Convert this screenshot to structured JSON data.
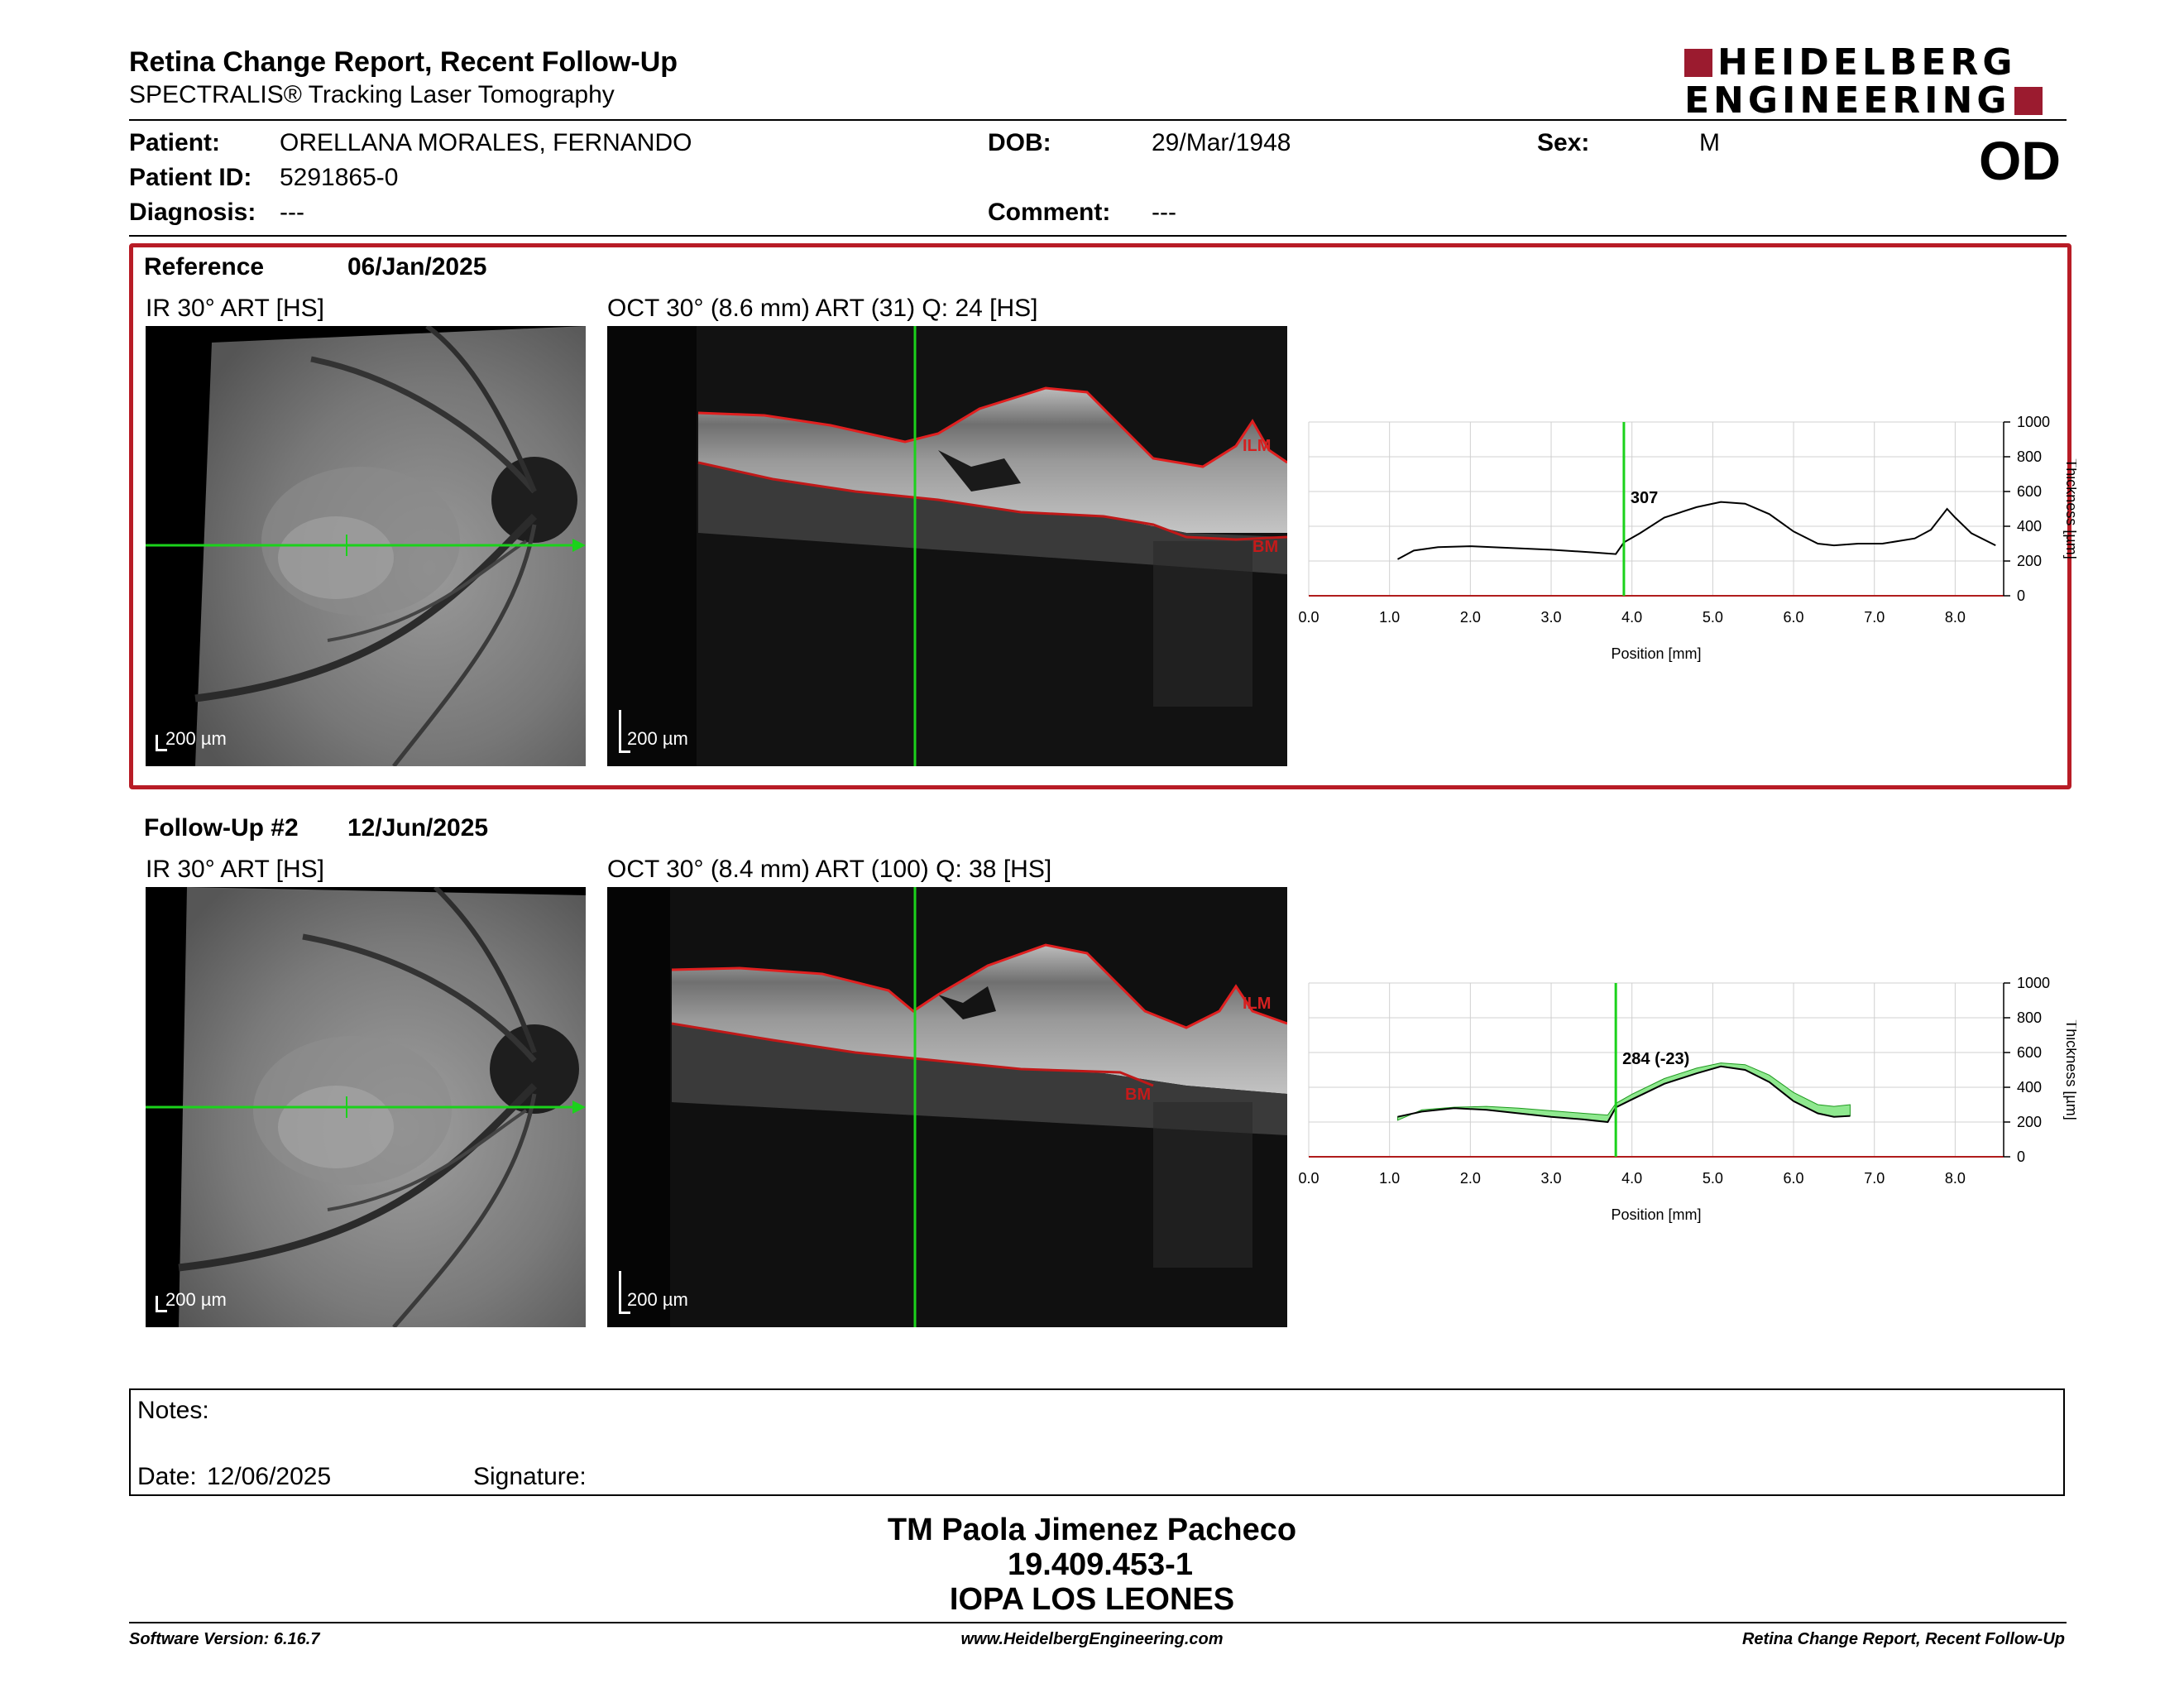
{
  "header": {
    "title": "Retina Change Report, Recent Follow-Up",
    "subtitle": "SPECTRALIS® Tracking Laser Tomography",
    "logo_line1": "HEIDELBERG",
    "logo_line2": "ENGINEERING",
    "eye": "OD"
  },
  "patient": {
    "patient_label": "Patient:",
    "patient_name": "ORELLANA MORALES, FERNANDO",
    "id_label": "Patient ID:",
    "id": "5291865-0",
    "diagnosis_label": "Diagnosis:",
    "diagnosis": "---",
    "dob_label": "DOB:",
    "dob": "29/Mar/1948",
    "comment_label": "Comment:",
    "comment": "---",
    "sex_label": "Sex:",
    "sex": "M"
  },
  "reference": {
    "label": "Reference",
    "date": "06/Jan/2025",
    "ir_caption": "IR 30° ART [HS]",
    "oct_caption": "OCT 30° (8.6 mm) ART (31) Q: 24 [HS]",
    "ir_scale": "200 µm",
    "oct_scale": "200 µm",
    "ilm": "ILM",
    "bm": "BM",
    "marker_value": "307"
  },
  "followup": {
    "label": "Follow-Up #2",
    "date": "12/Jun/2025",
    "ir_caption": "IR 30° ART [HS]",
    "oct_caption": "OCT 30° (8.4 mm) ART (100) Q: 38 [HS]",
    "ir_scale": "200 µm",
    "oct_scale": "200 µm",
    "ilm": "ILM",
    "bm": "BM",
    "marker_value": "284 (-23)"
  },
  "chart_data": [
    {
      "type": "line",
      "xlabel": "Position [mm]",
      "ylabel": "Thickness [µm]",
      "xlim": [
        0,
        8.6
      ],
      "ylim": [
        0,
        1000
      ],
      "x_ticks": [
        "0.0",
        "1.0",
        "2.0",
        "3.0",
        "4.0",
        "5.0",
        "6.0",
        "7.0",
        "8.0"
      ],
      "y_ticks": [
        "0",
        "200",
        "400",
        "600",
        "800",
        "1000"
      ],
      "grid": true,
      "marker_x": 3.9,
      "marker_label": "307",
      "series": [
        {
          "x": [
            1.1,
            1.3,
            1.6,
            2.0,
            2.5,
            3.0,
            3.5,
            3.8,
            3.9,
            4.1,
            4.4,
            4.8,
            5.1,
            5.4,
            5.7,
            6.0,
            6.3,
            6.5,
            6.8,
            7.1,
            7.5,
            7.7,
            7.9,
            8.0,
            8.2,
            8.5
          ],
          "y": [
            210,
            260,
            280,
            285,
            275,
            265,
            250,
            240,
            307,
            360,
            450,
            510,
            540,
            530,
            470,
            370,
            300,
            290,
            300,
            300,
            330,
            380,
            500,
            450,
            360,
            290
          ]
        }
      ]
    },
    {
      "type": "area",
      "xlabel": "Position [mm]",
      "ylabel": "Thickness [µm]",
      "xlim": [
        0,
        8.6
      ],
      "ylim": [
        0,
        1000
      ],
      "x_ticks": [
        "0.0",
        "1.0",
        "2.0",
        "3.0",
        "4.0",
        "5.0",
        "6.0",
        "7.0",
        "8.0"
      ],
      "y_ticks": [
        "0",
        "200",
        "400",
        "600",
        "800",
        "1000"
      ],
      "grid": true,
      "marker_x": 3.8,
      "marker_label": "284 (-23)",
      "series": [
        {
          "x": [
            1.1,
            1.4,
            1.8,
            2.2,
            2.6,
            3.0,
            3.4,
            3.7,
            3.8,
            4.0,
            4.4,
            4.8,
            5.1,
            5.4,
            5.7,
            6.0,
            6.3,
            6.5,
            6.7
          ],
          "y": [
            230,
            260,
            280,
            270,
            250,
            230,
            215,
            200,
            284,
            330,
            420,
            480,
            520,
            500,
            430,
            320,
            250,
            230,
            235
          ]
        },
        {
          "x": [
            1.1,
            1.4,
            1.8,
            2.2,
            2.6,
            3.0,
            3.4,
            3.7,
            3.8,
            4.0,
            4.4,
            4.8,
            5.1,
            5.4,
            5.7,
            6.0,
            6.3,
            6.5,
            6.7
          ],
          "y": [
            210,
            270,
            285,
            290,
            280,
            265,
            250,
            240,
            307,
            360,
            450,
            510,
            540,
            530,
            470,
            370,
            300,
            290,
            300
          ]
        }
      ]
    }
  ],
  "notes": {
    "notes_label": "Notes:",
    "date_label": "Date:",
    "date": "12/06/2025",
    "signature_label": "Signature:"
  },
  "signer": {
    "name": "TM Paola Jimenez Pacheco",
    "id": "19.409.453-1",
    "org": "IOPA LOS LEONES"
  },
  "footer": {
    "software": "Software Version: 6.16.7",
    "website": "www.HeidelbergEngineering.com",
    "report": "Retina Change Report, Recent Follow-Up"
  }
}
